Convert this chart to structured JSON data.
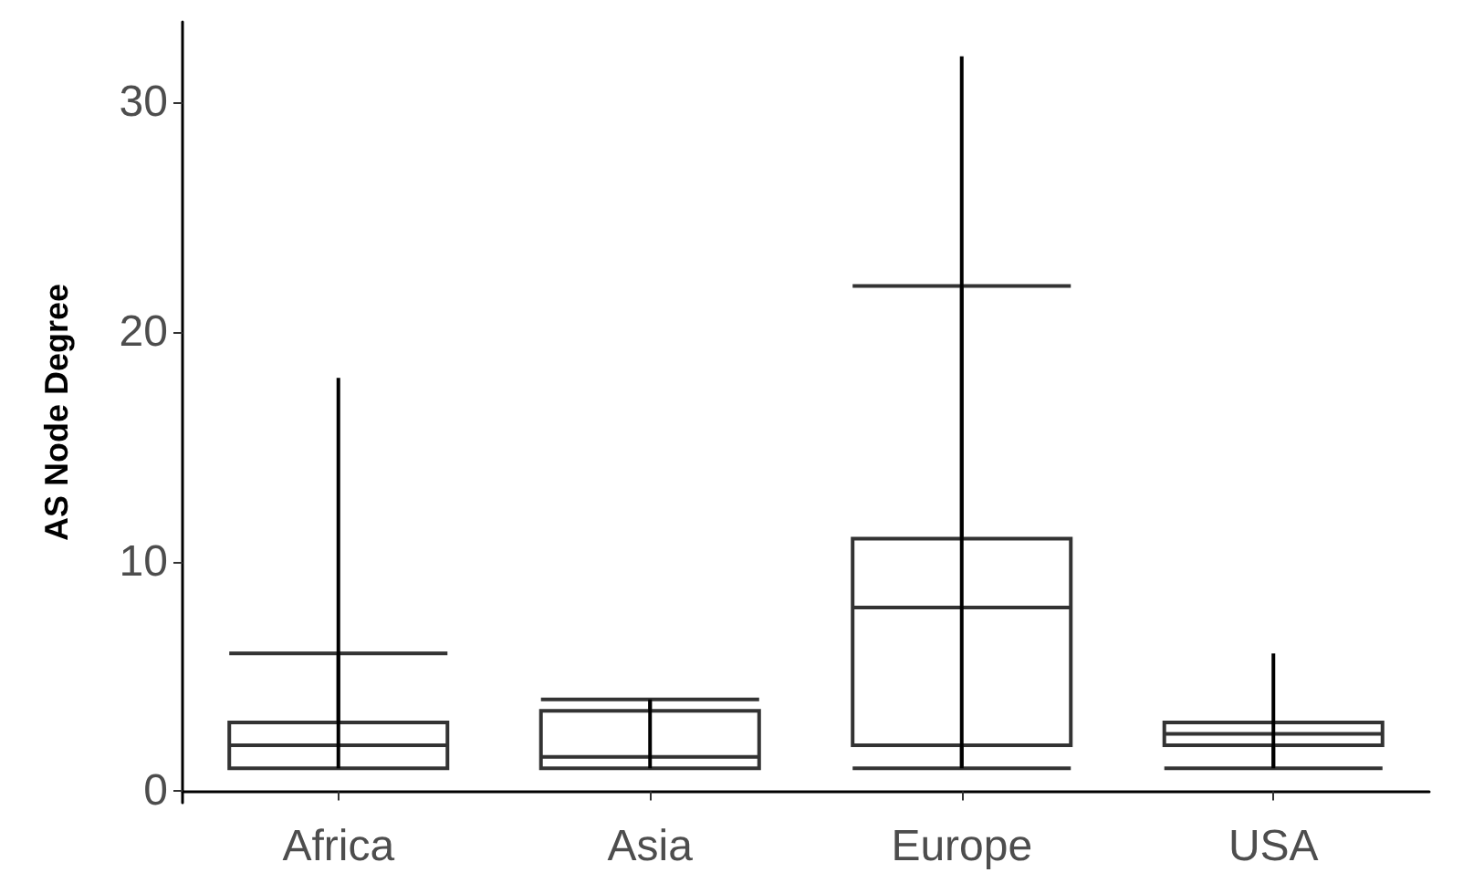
{
  "chart_data": {
    "type": "box",
    "ylabel": "AS Node Degree",
    "categories": [
      "Africa",
      "Asia",
      "Europe",
      "USA"
    ],
    "series": [
      {
        "color": "#333333",
        "boxes": [
          {
            "low": 1,
            "q1": 1,
            "median": 2,
            "q3": 3,
            "high": 6
          },
          {
            "low": 1,
            "q1": 1,
            "median": 1.5,
            "q3": 3.5,
            "high": 4
          },
          {
            "low": 1,
            "q1": 2,
            "median": 8,
            "q3": 11,
            "high": 22
          },
          {
            "low": 1,
            "q1": 2,
            "median": 2.5,
            "q3": 3,
            "high": 3
          }
        ]
      },
      {
        "type": "bar",
        "color": "#000000",
        "base": [
          1,
          1,
          1,
          1
        ],
        "values": [
          17,
          3,
          31,
          5
        ]
      }
    ],
    "ylim": [
      -0.5,
      33.5
    ],
    "yticks": [
      0,
      10,
      20,
      30
    ],
    "grid": false
  }
}
